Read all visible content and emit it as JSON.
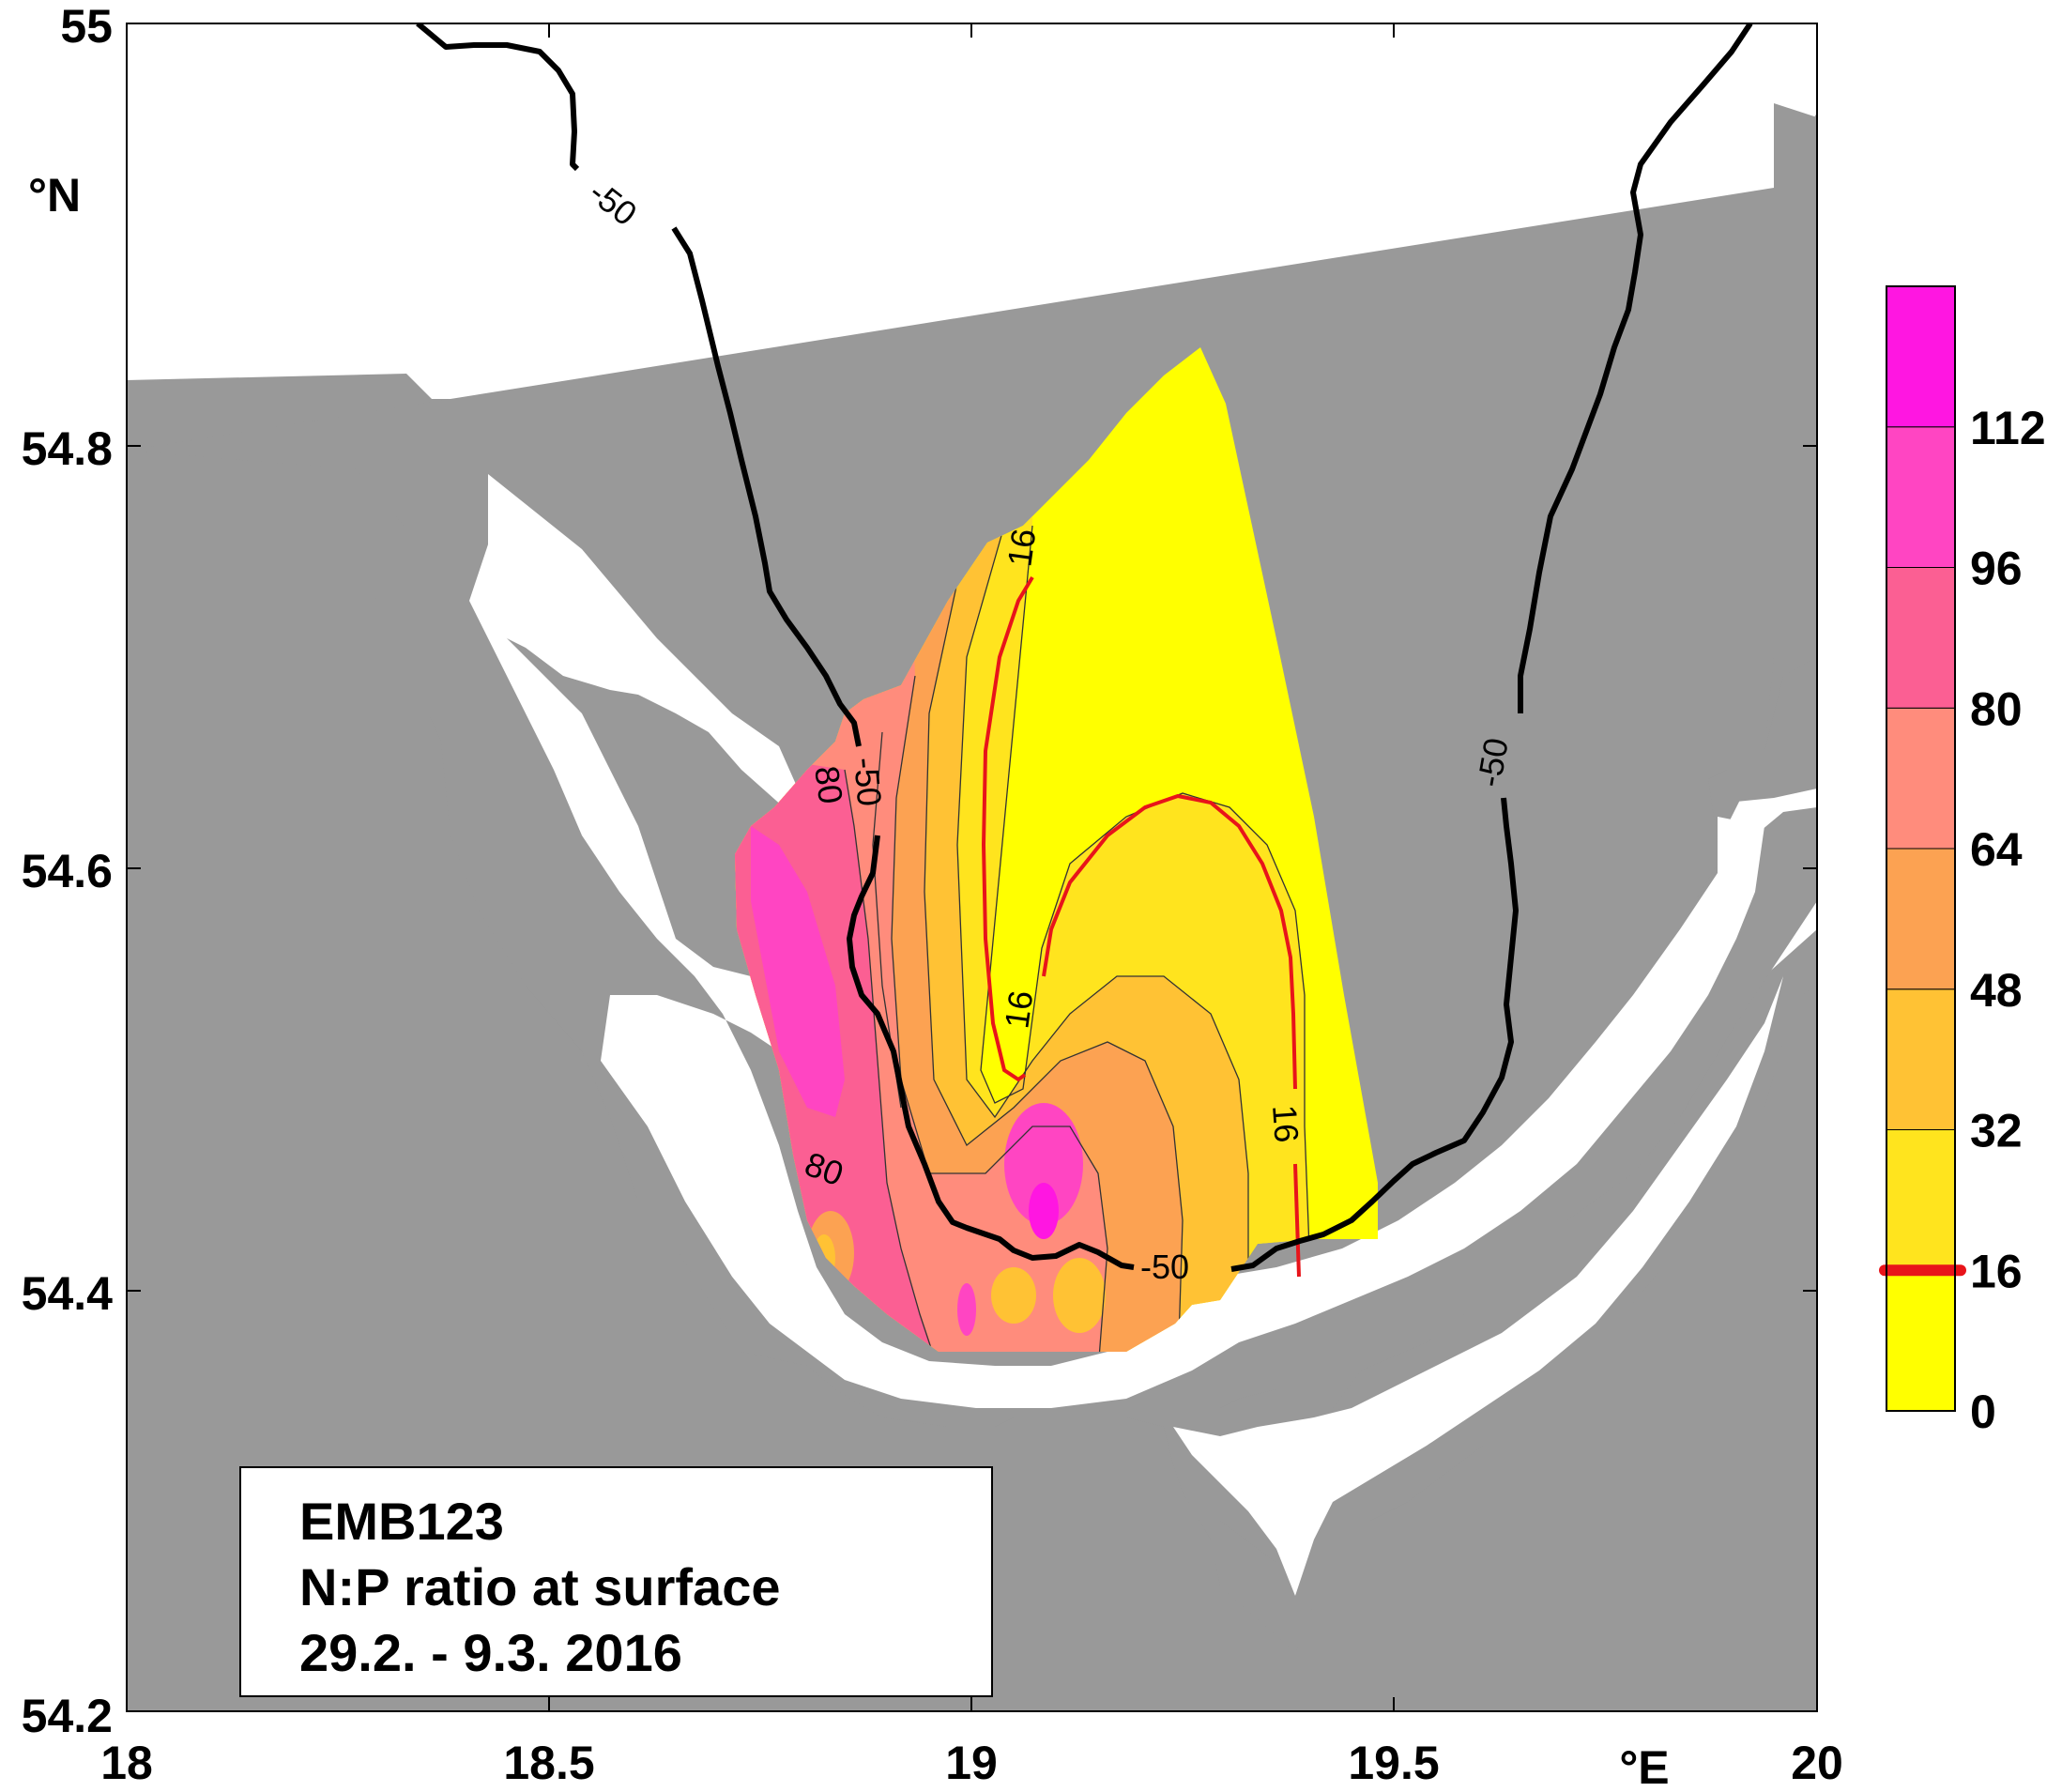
{
  "map": {
    "axes": {
      "lon_unit": "°E",
      "lat_unit": "°N",
      "lon_range": [
        18,
        20
      ],
      "lat_range": [
        54.2,
        55
      ],
      "lon_ticks": [
        "18",
        "18.5",
        "19",
        "19.5",
        "20"
      ],
      "lat_ticks": [
        "54.2",
        "54.4",
        "54.6",
        "54.8",
        "55"
      ]
    },
    "colorbar": {
      "levels": [
        {
          "value": "0",
          "color": "#ffff00"
        },
        {
          "value": "16",
          "color": "#ffe41e"
        },
        {
          "value": "32",
          "color": "#ffc234"
        },
        {
          "value": "48",
          "color": "#fca252"
        },
        {
          "value": "64",
          "color": "#ff8c7c"
        },
        {
          "value": "80",
          "color": "#fb5f93"
        },
        {
          "value": "96",
          "color": "#ff45c2"
        },
        {
          "value": "112",
          "color": "#ff16e1"
        }
      ],
      "highlight_value": "16",
      "highlight_color": "#e8141a"
    },
    "contour_labels": {
      "depth": "-50",
      "np_16": "16",
      "np_80": "80"
    },
    "colors": {
      "land": "#999999",
      "sea": "#ffffff",
      "depth_contour": "#000000",
      "redfield_contour": "#e8141a"
    },
    "info": {
      "cruise": "EMB123",
      "parameter": "N:P ratio at surface",
      "period": "29.2. - 9.3. 2016"
    }
  }
}
